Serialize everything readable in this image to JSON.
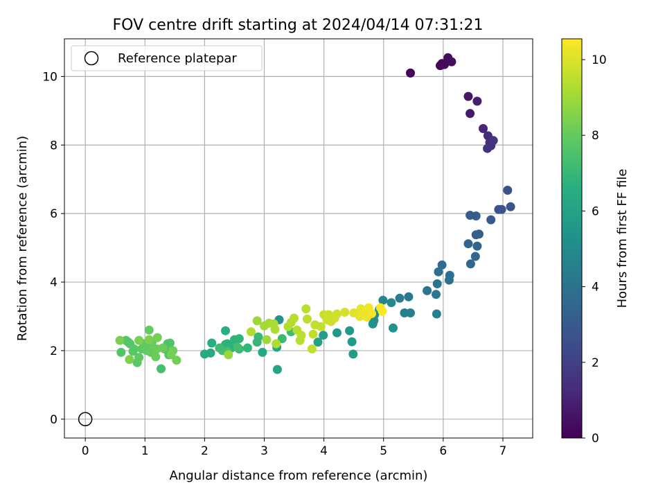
{
  "chart_data": {
    "type": "scatter",
    "title": "FOV centre drift starting at 2024/04/14 07:31:21",
    "xlabel": "Angular distance from reference (arcmin)",
    "ylabel": "Rotation from reference (arcmin)",
    "xlim": [
      -0.35,
      7.5
    ],
    "ylim": [
      -0.55,
      11.1
    ],
    "x_ticks": [
      0,
      1,
      2,
      3,
      4,
      5,
      6,
      7
    ],
    "y_ticks": [
      0,
      2,
      4,
      6,
      8,
      10
    ],
    "grid": true,
    "legend": {
      "position": "top-left",
      "entries": [
        "Reference platepar"
      ]
    },
    "reference_point": {
      "x": 0,
      "y": 0,
      "label": "Reference platepar",
      "marker": "open-circle"
    },
    "colorbar": {
      "label": "Hours from first FF file",
      "range": [
        0,
        10.55
      ],
      "ticks": [
        0,
        2,
        4,
        6,
        8,
        10
      ],
      "colormap": "viridis"
    },
    "series": [
      {
        "x_key": "angular_distance",
        "y_key": "rotation",
        "color_key": "hours",
        "points": [
          [
            5.45,
            10.1,
            0.1
          ],
          [
            5.95,
            10.32,
            0.15
          ],
          [
            5.98,
            10.38,
            0.2
          ],
          [
            6.02,
            10.35,
            0.25
          ],
          [
            6.08,
            10.55,
            0.3
          ],
          [
            6.14,
            10.43,
            0.35
          ],
          [
            6.42,
            9.42,
            0.6
          ],
          [
            6.45,
            8.92,
            0.75
          ],
          [
            6.57,
            9.28,
            0.9
          ],
          [
            6.67,
            8.48,
            1.1
          ],
          [
            6.75,
            8.27,
            1.25
          ],
          [
            6.78,
            8.07,
            1.35
          ],
          [
            6.8,
            7.98,
            1.45
          ],
          [
            6.74,
            7.9,
            1.5
          ],
          [
            6.84,
            8.13,
            1.6
          ],
          [
            7.08,
            6.68,
            2.6
          ],
          [
            6.93,
            6.12,
            2.7
          ],
          [
            6.98,
            6.12,
            2.75
          ],
          [
            7.13,
            6.2,
            2.8
          ],
          [
            6.8,
            5.82,
            3.0
          ],
          [
            6.55,
            5.93,
            3.1
          ],
          [
            6.45,
            5.95,
            3.05
          ],
          [
            6.55,
            5.38,
            3.2
          ],
          [
            6.6,
            5.4,
            3.25
          ],
          [
            6.42,
            5.12,
            3.35
          ],
          [
            6.57,
            5.05,
            3.4
          ],
          [
            6.54,
            4.75,
            3.5
          ],
          [
            6.46,
            4.53,
            3.6
          ],
          [
            5.98,
            4.5,
            3.7
          ],
          [
            5.92,
            4.3,
            3.8
          ],
          [
            6.11,
            4.2,
            3.85
          ],
          [
            6.1,
            4.06,
            3.9
          ],
          [
            5.9,
            3.95,
            4.0
          ],
          [
            5.73,
            3.75,
            4.1
          ],
          [
            5.88,
            3.64,
            4.2
          ],
          [
            5.42,
            3.57,
            4.3
          ],
          [
            5.27,
            3.53,
            4.4
          ],
          [
            5.35,
            3.1,
            4.45
          ],
          [
            5.45,
            3.1,
            4.5
          ],
          [
            5.89,
            3.07,
            4.55
          ],
          [
            4.99,
            3.47,
            4.8
          ],
          [
            5.13,
            3.4,
            4.9
          ],
          [
            4.93,
            3.2,
            5.0
          ],
          [
            4.85,
            3.05,
            5.1
          ],
          [
            4.84,
            2.88,
            5.2
          ],
          [
            4.82,
            2.78,
            5.25
          ],
          [
            5.16,
            2.66,
            5.3
          ],
          [
            3.25,
            2.9,
            5.4
          ],
          [
            4.22,
            2.52,
            5.5
          ],
          [
            4.43,
            2.58,
            5.6
          ],
          [
            4.47,
            2.26,
            5.7
          ],
          [
            4.49,
            1.9,
            5.8
          ],
          [
            3.99,
            2.45,
            5.9
          ],
          [
            3.9,
            2.25,
            6.0
          ],
          [
            3.21,
            2.1,
            6.1
          ],
          [
            3.22,
            1.45,
            6.2
          ],
          [
            2.97,
            1.95,
            6.3
          ],
          [
            2.0,
            1.9,
            6.35
          ],
          [
            2.1,
            1.93,
            6.4
          ],
          [
            2.12,
            2.22,
            6.5
          ],
          [
            2.35,
            2.58,
            6.6
          ],
          [
            2.35,
            2.18,
            6.65
          ],
          [
            2.38,
            2.2,
            6.7
          ],
          [
            2.45,
            2.08,
            6.75
          ],
          [
            2.5,
            2.32,
            6.8
          ],
          [
            2.58,
            2.35,
            6.85
          ],
          [
            2.72,
            2.08,
            6.9
          ],
          [
            2.88,
            2.25,
            6.95
          ],
          [
            2.9,
            2.4,
            7.0
          ],
          [
            2.58,
            2.05,
            7.05
          ],
          [
            3.3,
            2.35,
            7.1
          ],
          [
            3.45,
            2.55,
            7.15
          ],
          [
            2.25,
            2.08,
            7.2
          ],
          [
            2.3,
            2.0,
            7.25
          ],
          [
            2.55,
            2.1,
            7.3
          ],
          [
            2.38,
            1.98,
            7.35
          ],
          [
            1.27,
            1.47,
            7.4
          ],
          [
            1.4,
            1.88,
            7.45
          ],
          [
            1.38,
            2.2,
            7.5
          ],
          [
            1.42,
            2.22,
            7.55
          ],
          [
            1.33,
            2.05,
            7.6
          ],
          [
            0.6,
            1.95,
            7.6
          ],
          [
            0.68,
            2.3,
            7.65
          ],
          [
            0.72,
            2.25,
            7.7
          ],
          [
            0.75,
            2.2,
            7.7
          ],
          [
            0.8,
            1.98,
            7.75
          ],
          [
            0.82,
            2.05,
            7.8
          ],
          [
            0.87,
            1.65,
            7.8
          ],
          [
            0.9,
            1.8,
            7.85
          ],
          [
            0.95,
            2.05,
            7.85
          ],
          [
            0.98,
            2.2,
            7.9
          ],
          [
            1.0,
            2.1,
            7.9
          ],
          [
            1.03,
            2.0,
            7.95
          ],
          [
            1.05,
            2.2,
            7.95
          ],
          [
            1.07,
            2.6,
            8.0
          ],
          [
            1.1,
            1.95,
            8.0
          ],
          [
            1.12,
            2.25,
            8.05
          ],
          [
            1.15,
            2.0,
            8.05
          ],
          [
            1.18,
            1.82,
            8.1
          ],
          [
            1.2,
            2.05,
            8.1
          ],
          [
            1.3,
            2.08,
            8.15
          ],
          [
            1.47,
            2.0,
            8.2
          ],
          [
            1.53,
            1.72,
            8.25
          ],
          [
            1.44,
            1.88,
            8.3
          ],
          [
            1.21,
            2.38,
            8.3
          ],
          [
            0.58,
            2.3,
            8.35
          ],
          [
            0.74,
            1.74,
            8.4
          ],
          [
            0.9,
            2.3,
            8.35
          ],
          [
            1.07,
            2.32,
            8.4
          ],
          [
            2.4,
            1.88,
            8.9
          ],
          [
            2.88,
            2.87,
            8.95
          ],
          [
            3.04,
            2.32,
            9.0
          ],
          [
            3.0,
            2.72,
            9.05
          ],
          [
            3.08,
            2.8,
            9.1
          ],
          [
            3.16,
            2.78,
            9.15
          ],
          [
            3.18,
            2.62,
            9.2
          ],
          [
            3.2,
            2.2,
            9.25
          ],
          [
            3.4,
            2.7,
            9.3
          ],
          [
            3.45,
            2.82,
            9.35
          ],
          [
            3.5,
            2.95,
            9.4
          ],
          [
            3.55,
            2.6,
            9.4
          ],
          [
            3.6,
            2.3,
            9.45
          ],
          [
            3.62,
            2.45,
            9.5
          ],
          [
            3.7,
            3.22,
            9.45
          ],
          [
            3.72,
            2.92,
            9.5
          ],
          [
            3.82,
            2.48,
            9.55
          ],
          [
            3.85,
            2.75,
            9.6
          ],
          [
            3.8,
            2.05,
            9.55
          ],
          [
            3.95,
            2.7,
            9.6
          ],
          [
            4.0,
            3.05,
            9.65
          ],
          [
            4.05,
            2.9,
            9.7
          ],
          [
            4.08,
            3.05,
            9.7
          ],
          [
            4.12,
            2.85,
            9.75
          ],
          [
            4.18,
            2.95,
            9.8
          ],
          [
            4.22,
            3.07,
            9.8
          ],
          [
            4.35,
            3.12,
            9.85
          ],
          [
            2.78,
            2.55,
            9.3
          ],
          [
            4.5,
            3.1,
            10.1
          ],
          [
            4.6,
            3.0,
            10.15
          ],
          [
            4.62,
            3.22,
            10.2
          ],
          [
            4.68,
            3.15,
            10.25
          ],
          [
            4.72,
            2.98,
            10.3
          ],
          [
            4.75,
            3.25,
            10.35
          ],
          [
            4.8,
            3.08,
            10.4
          ],
          [
            4.95,
            3.25,
            10.45
          ],
          [
            4.98,
            3.15,
            10.5
          ]
        ]
      }
    ]
  }
}
